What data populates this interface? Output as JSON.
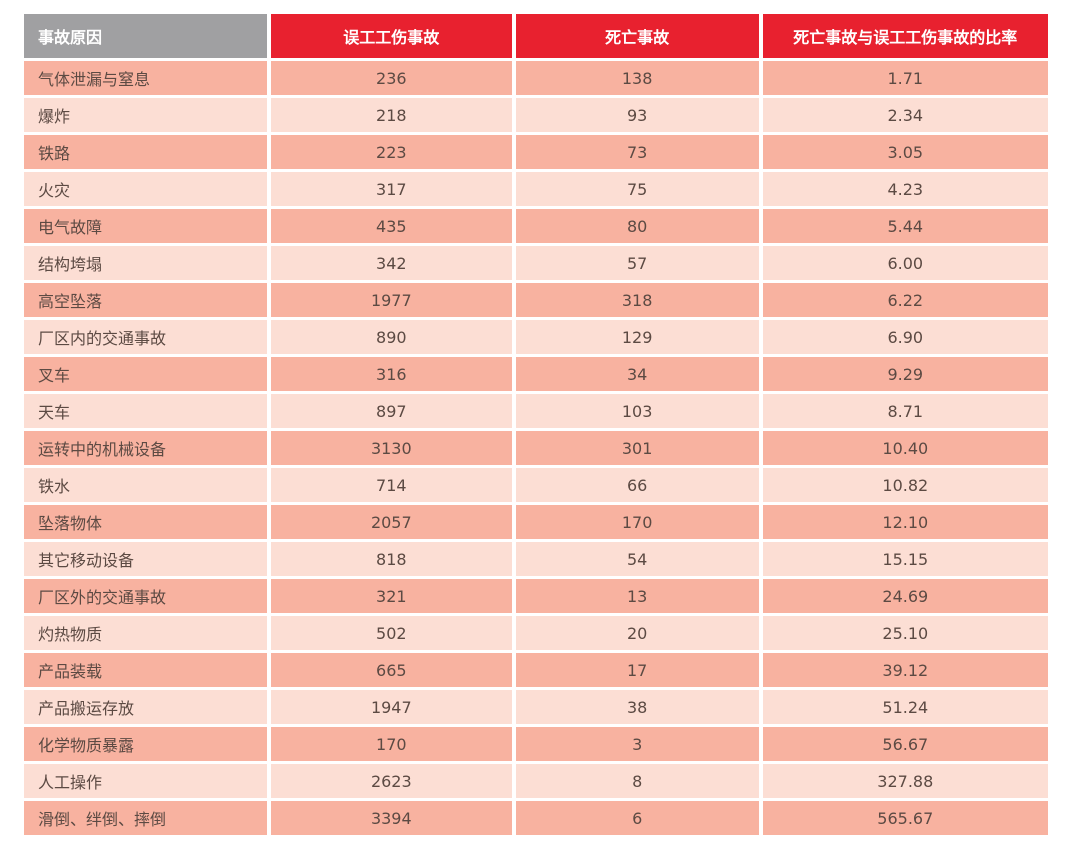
{
  "colors": {
    "header_gray": "#a0a0a2",
    "header_red": "#e8212f",
    "row_dark": "#f8b2a0",
    "row_light": "#fcded4",
    "header_text": "#ffffff",
    "text_dark": "#5c4a43"
  },
  "chart_data": {
    "type": "table",
    "title": "",
    "columns": [
      "事故原因",
      "误工工伤事故",
      "死亡事故",
      "死亡事故与误工工伤事故的比率"
    ],
    "rows": [
      [
        "气体泄漏与窒息",
        "236",
        "138",
        "1.71"
      ],
      [
        "爆炸",
        "218",
        "93",
        "2.34"
      ],
      [
        "铁路",
        "223",
        "73",
        "3.05"
      ],
      [
        "火灾",
        "317",
        "75",
        "4.23"
      ],
      [
        "电气故障",
        "435",
        "80",
        "5.44"
      ],
      [
        "结构垮塌",
        "342",
        "57",
        "6.00"
      ],
      [
        "高空坠落",
        "1977",
        "318",
        "6.22"
      ],
      [
        "厂区内的交通事故",
        "890",
        "129",
        "6.90"
      ],
      [
        "叉车",
        "316",
        "34",
        "9.29"
      ],
      [
        "天车",
        "897",
        "103",
        "8.71"
      ],
      [
        "运转中的机械设备",
        "3130",
        "301",
        "10.40"
      ],
      [
        "铁水",
        "714",
        "66",
        "10.82"
      ],
      [
        "坠落物体",
        "2057",
        "170",
        "12.10"
      ],
      [
        "其它移动设备",
        "818",
        "54",
        "15.15"
      ],
      [
        "厂区外的交通事故",
        "321",
        "13",
        "24.69"
      ],
      [
        "灼热物质",
        "502",
        "20",
        "25.10"
      ],
      [
        "产品装载",
        "665",
        "17",
        "39.12"
      ],
      [
        "产品搬运存放",
        "1947",
        "38",
        "51.24"
      ],
      [
        "化学物质暴露",
        "170",
        "3",
        "56.67"
      ],
      [
        "人工操作",
        "2623",
        "8",
        "327.88"
      ],
      [
        "滑倒、绊倒、摔倒",
        "3394",
        "6",
        "565.67"
      ]
    ],
    "layout": {
      "header_row_colors": [
        "gray",
        "red",
        "red",
        "red"
      ],
      "body_row_striping": "odd rows dark pink, even rows light pink",
      "column_alignment": [
        "left",
        "center",
        "center",
        "center"
      ]
    }
  }
}
